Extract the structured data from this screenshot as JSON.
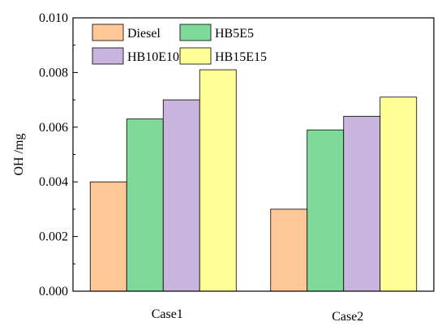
{
  "chart_data": {
    "type": "bar",
    "title": "",
    "xlabel": "",
    "ylabel": "OH /mg",
    "ylim": [
      0,
      0.01
    ],
    "yticks": [
      "0.000",
      "0.002",
      "0.004",
      "0.006",
      "0.008",
      "0.010"
    ],
    "categories": [
      "Case1",
      "Case2"
    ],
    "grid": false,
    "legend_position": "top-left",
    "series": [
      {
        "name": "Diesel",
        "color": "#FFC896",
        "values": [
          0.004,
          0.003
        ]
      },
      {
        "name": "HB5E5",
        "color": "#7DDA98",
        "values": [
          0.0063,
          0.0059
        ]
      },
      {
        "name": "HB10E10",
        "color": "#C8B4DC",
        "values": [
          0.007,
          0.0064
        ]
      },
      {
        "name": "HB15E15",
        "color": "#FFFF96",
        "values": [
          0.0081,
          0.0071
        ]
      }
    ]
  }
}
